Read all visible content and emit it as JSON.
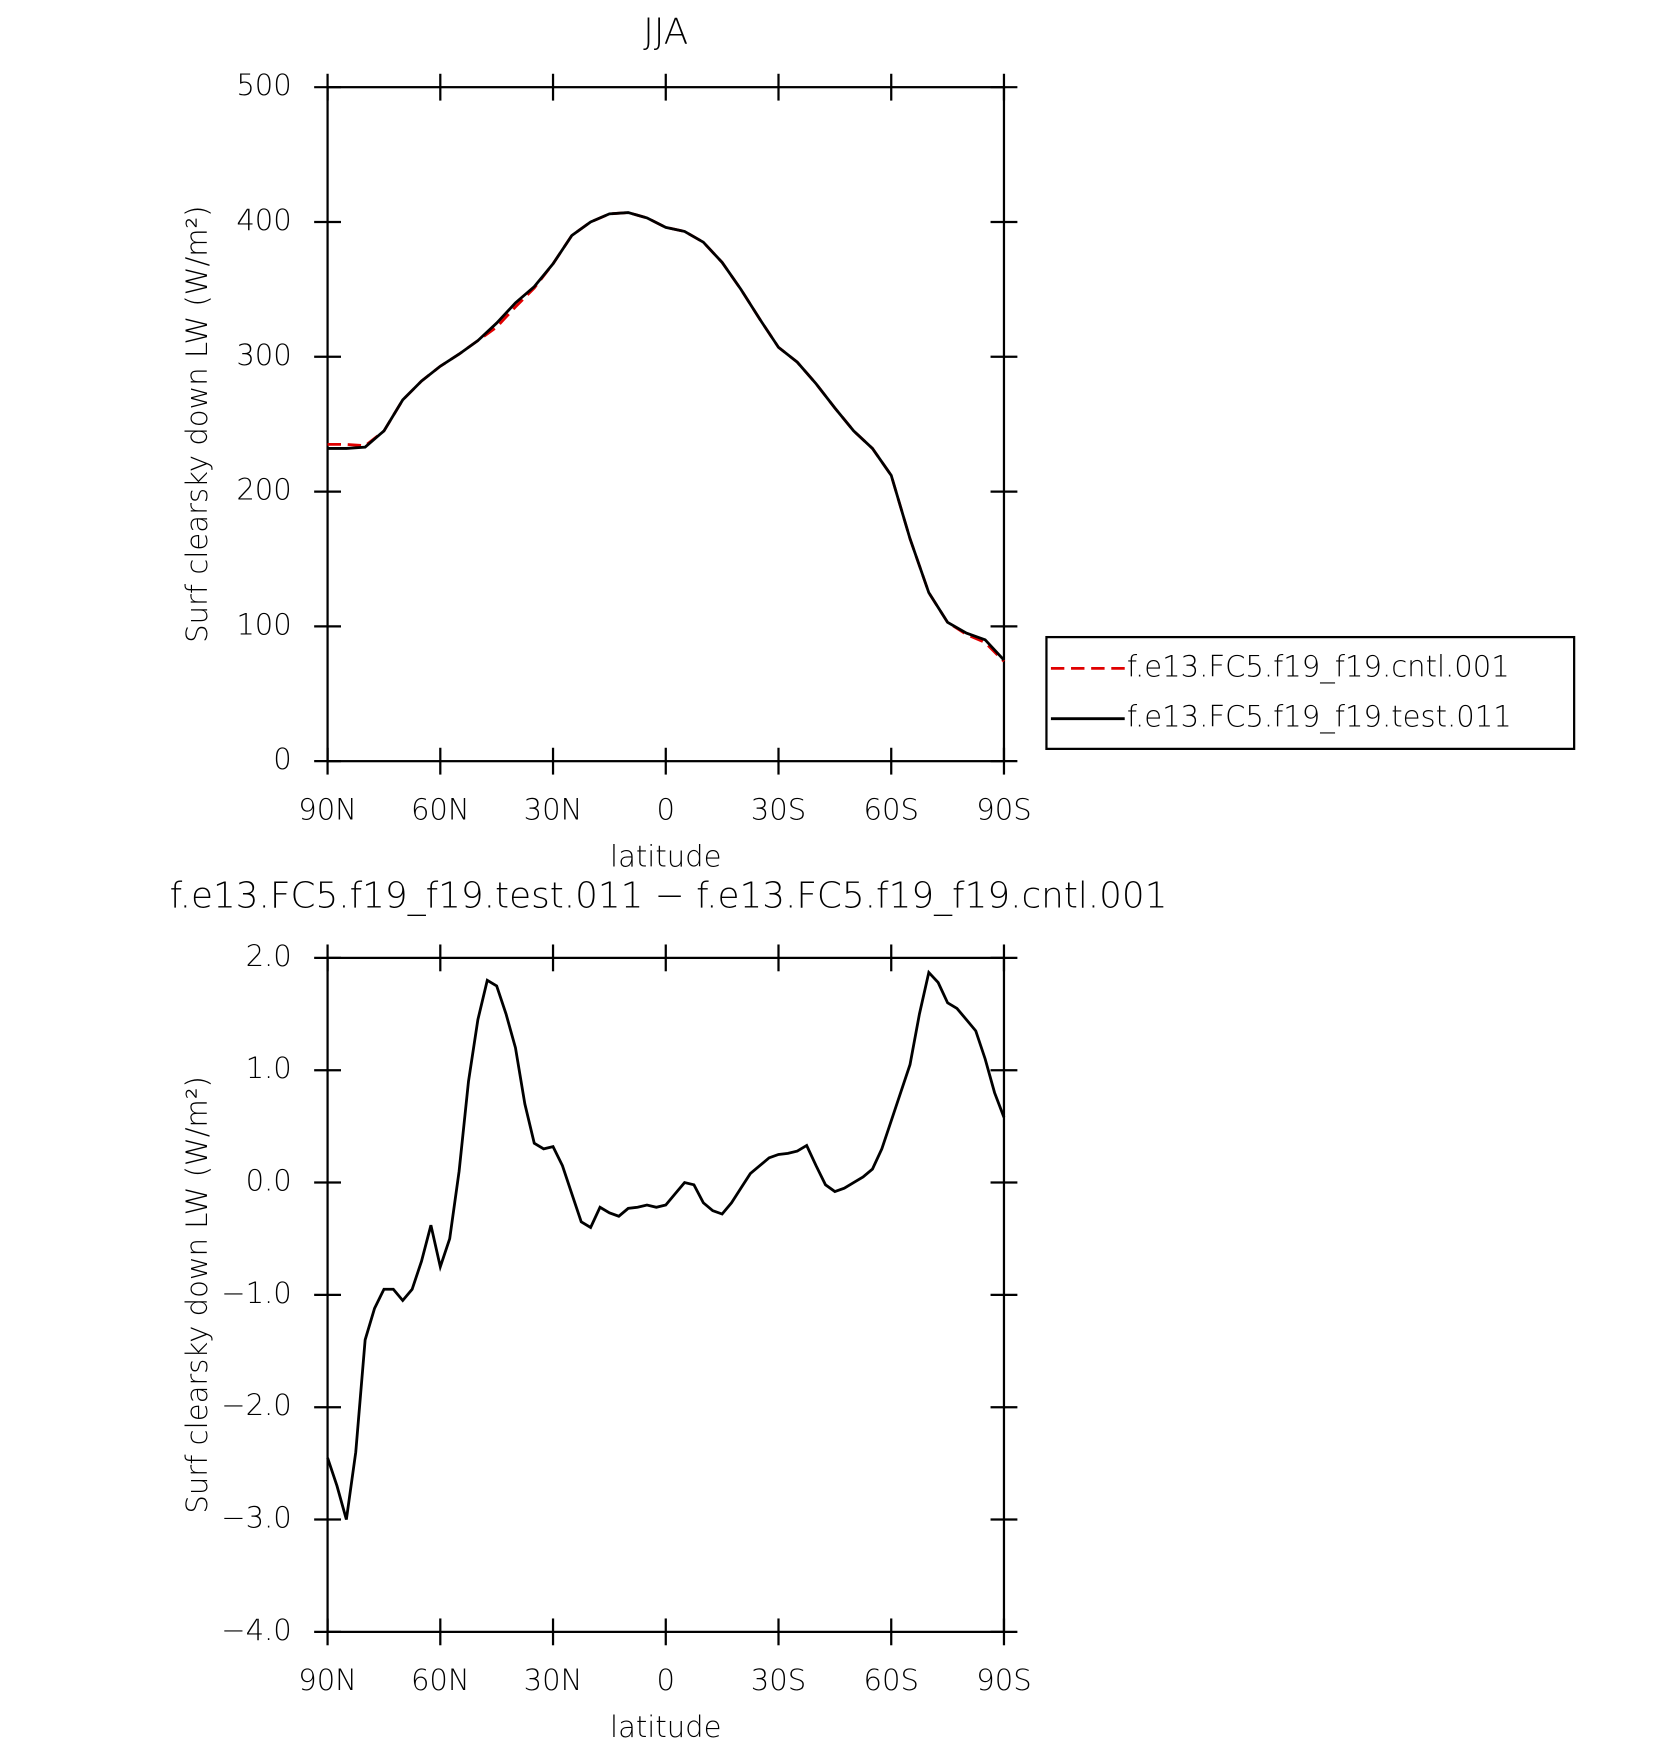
{
  "chart_data": [
    {
      "type": "line",
      "title": "JJA",
      "xlabel": "latitude",
      "ylabel": "Surf clearsky down LW (W/m²)",
      "x": [
        90,
        85,
        80,
        75,
        70,
        65,
        60,
        55,
        50,
        45,
        40,
        35,
        30,
        25,
        20,
        15,
        10,
        5,
        0,
        -5,
        -10,
        -15,
        -20,
        -25,
        -30,
        -35,
        -40,
        -45,
        -50,
        -55,
        -60,
        -65,
        -70,
        -75,
        -80,
        -85,
        -90
      ],
      "series": [
        {
          "name": "f.e13.FC5.f19_f19.cntl.001",
          "color": "#e00000",
          "dash": true,
          "values": [
            235,
            235,
            234,
            245,
            268,
            282,
            293,
            302,
            312,
            322,
            337,
            351,
            369,
            390,
            400,
            406,
            407,
            403,
            396,
            393,
            385,
            370,
            350,
            328,
            307,
            296,
            280,
            262,
            245,
            232,
            212,
            165,
            125,
            103,
            94,
            88,
            74
          ]
        },
        {
          "name": "f.e13.FC5.f19_f19.test.011",
          "color": "#000000",
          "dash": false,
          "values": [
            232,
            232,
            233,
            245,
            268,
            282,
            293,
            302,
            312,
            325,
            340,
            352,
            369,
            390,
            400,
            406,
            407,
            403,
            396,
            393,
            385,
            370,
            350,
            328,
            307,
            296,
            280,
            262,
            245,
            232,
            212,
            165,
            125,
            103,
            95,
            90,
            75
          ]
        }
      ],
      "xlim": [
        90,
        -90
      ],
      "xticks": [
        {
          "value": 90,
          "label": "90N"
        },
        {
          "value": 60,
          "label": "60N"
        },
        {
          "value": 30,
          "label": "30N"
        },
        0,
        {
          "value": -30,
          "label": "30S"
        },
        {
          "value": -60,
          "label": "60S"
        },
        {
          "value": -90,
          "label": "90S"
        }
      ],
      "ylim": [
        0,
        500
      ],
      "yticks": [
        0,
        100,
        200,
        300,
        400,
        500
      ],
      "legend": "right"
    },
    {
      "type": "line",
      "title": "f.e13.FC5.f19_f19.test.011 − f.e13.FC5.f19_f19.cntl.001",
      "xlabel": "latitude",
      "ylabel": "Surf clearsky down LW (W/m²)",
      "x": [
        90,
        87.5,
        85,
        82.5,
        80,
        77.5,
        75,
        72.5,
        70,
        67.5,
        65,
        62.5,
        60,
        57.5,
        55,
        52.5,
        50,
        47.5,
        45,
        42.5,
        40,
        37.5,
        35,
        32.5,
        30,
        27.5,
        25,
        22.5,
        20,
        17.5,
        15,
        12.5,
        10,
        7.5,
        5,
        2.5,
        0,
        -2.5,
        -5,
        -7.5,
        -10,
        -12.5,
        -15,
        -17.5,
        -20,
        -22.5,
        -25,
        -27.5,
        -30,
        -32.5,
        -35,
        -37.5,
        -40,
        -42.5,
        -45,
        -47.5,
        -50,
        -52.5,
        -55,
        -57.5,
        -60,
        -62.5,
        -65,
        -67.5,
        -70,
        -72.5,
        -75,
        -77.5,
        -80,
        -82.5,
        -85,
        -87.5,
        -90
      ],
      "series": [
        {
          "color": "#000000",
          "dash": false,
          "values": [
            -2.45,
            -2.7,
            -3.0,
            -2.4,
            -1.4,
            -1.12,
            -0.95,
            -0.95,
            -1.05,
            -0.95,
            -0.7,
            -0.38,
            -0.75,
            -0.5,
            0.1,
            0.9,
            1.45,
            1.8,
            1.75,
            1.5,
            1.2,
            0.7,
            0.35,
            0.3,
            0.32,
            0.15,
            -0.1,
            -0.35,
            -0.4,
            -0.22,
            -0.27,
            -0.3,
            -0.23,
            -0.22,
            -0.2,
            -0.22,
            -0.2,
            -0.1,
            0.0,
            -0.02,
            -0.18,
            -0.25,
            -0.28,
            -0.18,
            -0.05,
            0.08,
            0.15,
            0.22,
            0.25,
            0.26,
            0.28,
            0.33,
            0.15,
            -0.02,
            -0.08,
            -0.05,
            0.0,
            0.05,
            0.12,
            0.3,
            0.55,
            0.8,
            1.05,
            1.5,
            1.87,
            1.78,
            1.6,
            1.55,
            1.45,
            1.35,
            1.1,
            0.8,
            0.58
          ]
        }
      ],
      "xlim": [
        90,
        -90
      ],
      "xticks": [
        {
          "value": 90,
          "label": "90N"
        },
        {
          "value": 60,
          "label": "60N"
        },
        {
          "value": 30,
          "label": "30N"
        },
        0,
        {
          "value": -30,
          "label": "30S"
        },
        {
          "value": -60,
          "label": "60S"
        },
        {
          "value": -90,
          "label": "90S"
        }
      ],
      "ylim": [
        -4,
        2
      ],
      "yticks": [
        {
          "value": -4,
          "label": "−4.0"
        },
        {
          "value": -3,
          "label": "−3.0"
        },
        {
          "value": -2,
          "label": "−2.0"
        },
        {
          "value": -1,
          "label": "−1.0"
        },
        {
          "value": 0,
          "label": "0.0"
        },
        {
          "value": 1,
          "label": "1.0"
        },
        {
          "value": 2,
          "label": "2.0"
        }
      ]
    }
  ]
}
